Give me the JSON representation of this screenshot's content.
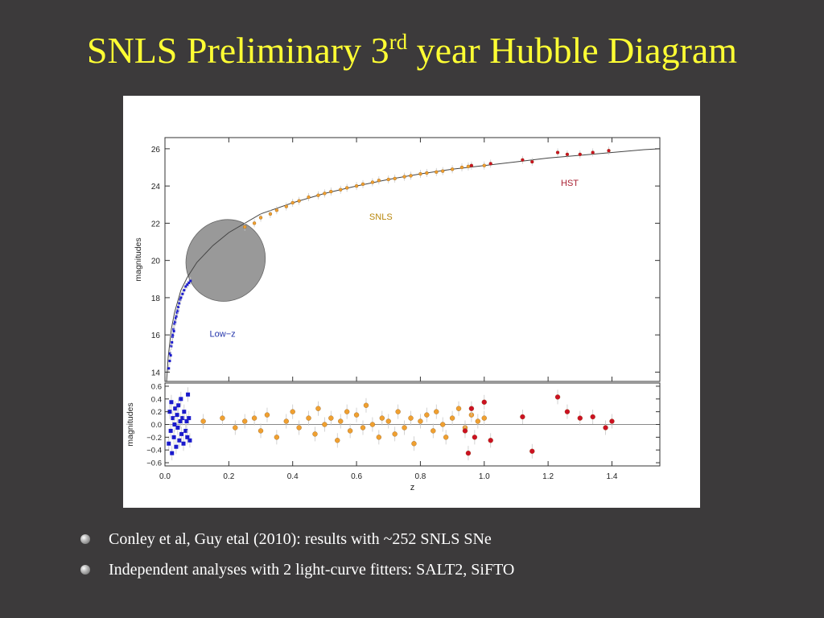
{
  "slide": {
    "title_main": "SNLS Preliminary 3",
    "title_sup": "rd",
    "title_end": " year Hubble Diagram",
    "bullets": [
      "Conley et al, Guy etal (2010): results with ~252 SNLS SNe",
      "Independent analyses with 2 light-curve fitters: SALT2, SiFTO"
    ]
  },
  "colors": {
    "background": "#3c3a3b",
    "title": "#ffff33",
    "lowz": "#1a1acc",
    "snls": "#f0a030",
    "hst": "#cc1122",
    "lowz_label": "#2233aa",
    "snls_label": "#b8860b",
    "hst_label": "#aa2233",
    "ellipse": "#999999"
  },
  "chart_data": [
    {
      "type": "scatter",
      "panel": "hubble",
      "ylabel": "magnitudes",
      "xlim": [
        0.0,
        1.55
      ],
      "ylim": [
        13.5,
        26.6
      ],
      "yticks": [
        "14",
        "16",
        "18",
        "20",
        "22",
        "24",
        "26"
      ],
      "grid": false,
      "annotations": [
        {
          "text": "Low−z",
          "x": 0.14,
          "y": 15.9
        },
        {
          "text": "SNLS",
          "x": 0.64,
          "y": 22.2
        },
        {
          "text": "HST",
          "x": 1.24,
          "y": 24.0
        }
      ],
      "highlight_ellipse": {
        "center_x": 0.19,
        "center_y": 20.0,
        "extent_x": 0.13,
        "extent_y": 2.1,
        "rotation_deg": 30
      },
      "model_curve": {
        "x": [
          0.005,
          0.01,
          0.02,
          0.03,
          0.05,
          0.07,
          0.1,
          0.15,
          0.2,
          0.3,
          0.4,
          0.5,
          0.6,
          0.7,
          0.8,
          0.9,
          1.0,
          1.1,
          1.2,
          1.3,
          1.4,
          1.5,
          1.55
        ],
        "y": [
          13.4,
          14.8,
          16.3,
          17.2,
          18.4,
          19.1,
          19.9,
          20.8,
          21.5,
          22.5,
          23.1,
          23.6,
          24.0,
          24.35,
          24.65,
          24.9,
          25.1,
          25.3,
          25.5,
          25.65,
          25.8,
          25.95,
          26.0
        ]
      },
      "series": [
        {
          "name": "Low−z",
          "marker": "square",
          "points": [
            [
              0.012,
              14.2
            ],
            [
              0.015,
              14.6
            ],
            [
              0.016,
              15.0
            ],
            [
              0.018,
              14.9
            ],
            [
              0.02,
              15.4
            ],
            [
              0.022,
              15.6
            ],
            [
              0.024,
              15.9
            ],
            [
              0.025,
              16.0
            ],
            [
              0.027,
              16.3
            ],
            [
              0.028,
              16.2
            ],
            [
              0.03,
              16.6
            ],
            [
              0.032,
              16.7
            ],
            [
              0.034,
              16.9
            ],
            [
              0.036,
              17.0
            ],
            [
              0.038,
              17.2
            ],
            [
              0.04,
              17.3
            ],
            [
              0.042,
              17.5
            ],
            [
              0.045,
              17.7
            ],
            [
              0.048,
              17.9
            ],
            [
              0.05,
              18.0
            ],
            [
              0.055,
              18.2
            ],
            [
              0.06,
              18.4
            ],
            [
              0.065,
              18.6
            ],
            [
              0.07,
              18.7
            ],
            [
              0.075,
              18.8
            ],
            [
              0.08,
              18.9
            ]
          ]
        },
        {
          "name": "SNLS",
          "marker": "circle",
          "points": [
            [
              0.25,
              21.8
            ],
            [
              0.28,
              22.0
            ],
            [
              0.3,
              22.3
            ],
            [
              0.33,
              22.5
            ],
            [
              0.35,
              22.7
            ],
            [
              0.38,
              22.9
            ],
            [
              0.4,
              23.1
            ],
            [
              0.42,
              23.2
            ],
            [
              0.45,
              23.4
            ],
            [
              0.48,
              23.5
            ],
            [
              0.5,
              23.6
            ],
            [
              0.52,
              23.7
            ],
            [
              0.55,
              23.8
            ],
            [
              0.57,
              23.9
            ],
            [
              0.6,
              24.0
            ],
            [
              0.62,
              24.1
            ],
            [
              0.65,
              24.2
            ],
            [
              0.67,
              24.3
            ],
            [
              0.7,
              24.35
            ],
            [
              0.72,
              24.4
            ],
            [
              0.75,
              24.5
            ],
            [
              0.77,
              24.55
            ],
            [
              0.8,
              24.65
            ],
            [
              0.82,
              24.7
            ],
            [
              0.85,
              24.75
            ],
            [
              0.87,
              24.8
            ],
            [
              0.9,
              24.9
            ],
            [
              0.93,
              25.0
            ],
            [
              0.95,
              25.05
            ],
            [
              1.0,
              25.1
            ]
          ]
        },
        {
          "name": "HST",
          "marker": "circle",
          "points": [
            [
              0.96,
              25.1
            ],
            [
              1.02,
              25.2
            ],
            [
              1.12,
              25.4
            ],
            [
              1.15,
              25.3
            ],
            [
              1.23,
              25.8
            ],
            [
              1.26,
              25.7
            ],
            [
              1.3,
              25.7
            ],
            [
              1.34,
              25.8
            ],
            [
              1.39,
              25.9
            ]
          ]
        }
      ]
    },
    {
      "type": "scatter",
      "panel": "residuals",
      "xlabel": "z",
      "ylabel": "magnitudes",
      "xlim": [
        0.0,
        1.55
      ],
      "ylim": [
        -0.65,
        0.65
      ],
      "xticks": [
        "0.0",
        "0.2",
        "0.4",
        "0.6",
        "0.8",
        "1.0",
        "1.2",
        "1.4"
      ],
      "yticks": [
        "0.6",
        "0.4",
        "0.2",
        "0.0",
        "−0.2",
        "−0.4",
        "−0.6"
      ],
      "grid": false,
      "series": [
        {
          "name": "Low−z",
          "marker": "square",
          "points": [
            [
              0.012,
              -0.3
            ],
            [
              0.015,
              0.2
            ],
            [
              0.018,
              -0.1
            ],
            [
              0.02,
              0.35
            ],
            [
              0.022,
              -0.45
            ],
            [
              0.025,
              0.1
            ],
            [
              0.028,
              -0.2
            ],
            [
              0.03,
              0.0
            ],
            [
              0.032,
              0.25
            ],
            [
              0.035,
              -0.35
            ],
            [
              0.038,
              0.15
            ],
            [
              0.04,
              -0.05
            ],
            [
              0.042,
              0.3
            ],
            [
              0.045,
              -0.25
            ],
            [
              0.048,
              0.05
            ],
            [
              0.05,
              0.4
            ],
            [
              0.052,
              -0.15
            ],
            [
              0.055,
              0.1
            ],
            [
              0.058,
              -0.3
            ],
            [
              0.06,
              0.2
            ],
            [
              0.065,
              -0.1
            ],
            [
              0.068,
              0.05
            ],
            [
              0.07,
              -0.2
            ],
            [
              0.072,
              0.47
            ],
            [
              0.075,
              0.1
            ],
            [
              0.078,
              -0.25
            ]
          ]
        },
        {
          "name": "SNLS",
          "marker": "circle",
          "points": [
            [
              0.12,
              0.05
            ],
            [
              0.18,
              0.1
            ],
            [
              0.22,
              -0.05
            ],
            [
              0.25,
              0.05
            ],
            [
              0.28,
              0.1
            ],
            [
              0.3,
              -0.1
            ],
            [
              0.32,
              0.15
            ],
            [
              0.35,
              -0.2
            ],
            [
              0.38,
              0.05
            ],
            [
              0.4,
              0.2
            ],
            [
              0.42,
              -0.05
            ],
            [
              0.45,
              0.1
            ],
            [
              0.47,
              -0.15
            ],
            [
              0.48,
              0.25
            ],
            [
              0.5,
              0.0
            ],
            [
              0.52,
              0.1
            ],
            [
              0.54,
              -0.25
            ],
            [
              0.55,
              0.05
            ],
            [
              0.57,
              0.2
            ],
            [
              0.58,
              -0.1
            ],
            [
              0.6,
              0.15
            ],
            [
              0.62,
              -0.05
            ],
            [
              0.63,
              0.3
            ],
            [
              0.65,
              0.0
            ],
            [
              0.67,
              -0.2
            ],
            [
              0.68,
              0.1
            ],
            [
              0.7,
              0.05
            ],
            [
              0.72,
              -0.15
            ],
            [
              0.73,
              0.2
            ],
            [
              0.75,
              -0.05
            ],
            [
              0.77,
              0.1
            ],
            [
              0.78,
              -0.3
            ],
            [
              0.8,
              0.05
            ],
            [
              0.82,
              0.15
            ],
            [
              0.84,
              -0.1
            ],
            [
              0.85,
              0.2
            ],
            [
              0.87,
              0.0
            ],
            [
              0.88,
              -0.2
            ],
            [
              0.9,
              0.1
            ],
            [
              0.92,
              0.25
            ],
            [
              0.94,
              -0.05
            ],
            [
              0.96,
              0.15
            ],
            [
              0.98,
              0.05
            ],
            [
              1.0,
              0.1
            ]
          ]
        },
        {
          "name": "HST",
          "marker": "circle",
          "points": [
            [
              0.94,
              -0.1
            ],
            [
              0.95,
              -0.45
            ],
            [
              0.96,
              0.25
            ],
            [
              0.97,
              -0.2
            ],
            [
              1.0,
              0.35
            ],
            [
              1.02,
              -0.25
            ],
            [
              1.12,
              0.12
            ],
            [
              1.15,
              -0.42
            ],
            [
              1.23,
              0.43
            ],
            [
              1.26,
              0.2
            ],
            [
              1.3,
              0.1
            ],
            [
              1.34,
              0.12
            ],
            [
              1.38,
              -0.05
            ],
            [
              1.4,
              0.05
            ]
          ]
        }
      ]
    }
  ]
}
